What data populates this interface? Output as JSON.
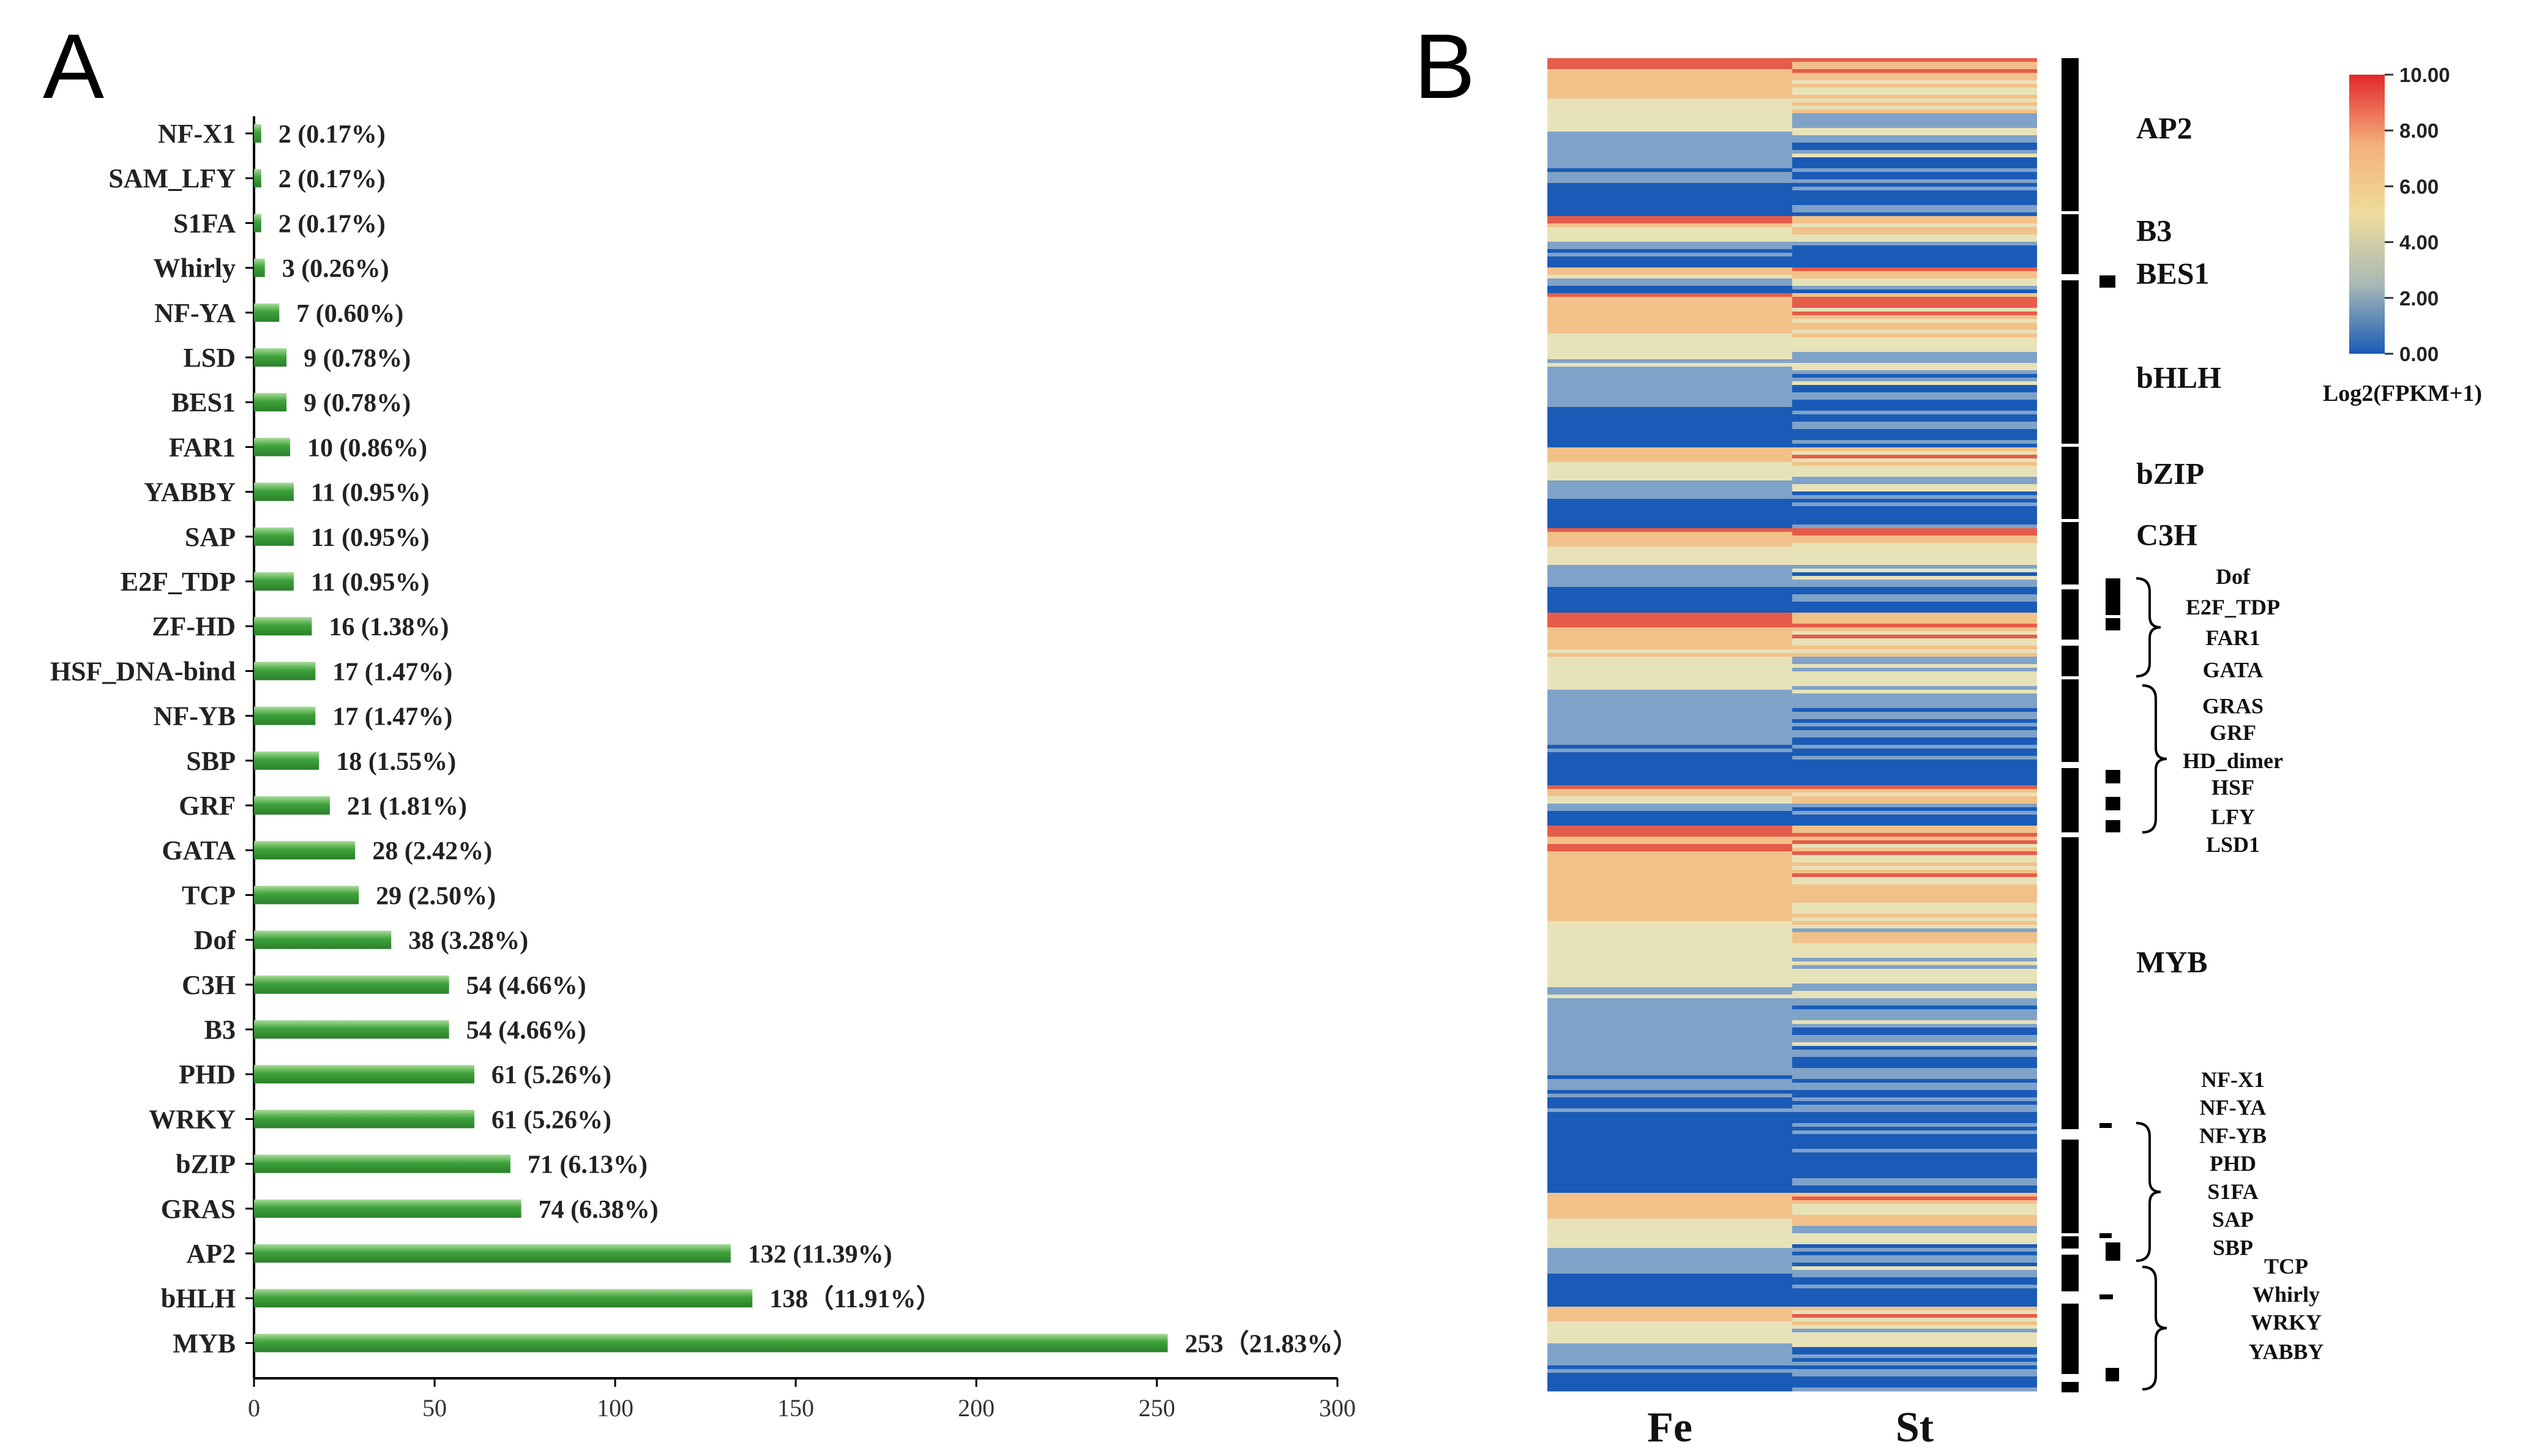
{
  "panel_a": {
    "label": "A"
  },
  "panel_b": {
    "label": "B",
    "colorbar": {
      "title": "Log2(FPKM+1)",
      "ticks": [
        "10.00",
        "8.00",
        "6.00",
        "4.00",
        "2.00",
        "0.00"
      ],
      "colors": [
        "#e3262a",
        "#f3b07c",
        "#eedd9c",
        "#a9b9b6",
        "#1a5bb7"
      ]
    },
    "heatmap_colors": {
      "low": "#1a5bb7",
      "mid_low": "#7fa2c8",
      "mid": "#e8e2b8",
      "mid_high": "#f2c189",
      "high": "#e55c4a"
    }
  },
  "chart_data": [
    {
      "type": "bar",
      "orientation": "horizontal",
      "title": "",
      "xlabel": "",
      "ylabel": "",
      "xlim": [
        0,
        300
      ],
      "xticks": [
        0,
        50,
        100,
        150,
        200,
        250,
        300
      ],
      "categories": [
        "NF-X1",
        "SAM_LFY",
        "S1FA",
        "Whirly",
        "NF-YA",
        "LSD",
        "BES1",
        "FAR1",
        "YABBY",
        "SAP",
        "E2F_TDP",
        "ZF-HD",
        "HSF_DNA-bind",
        "NF-YB",
        "SBP",
        "GRF",
        "GATA",
        "TCP",
        "Dof",
        "C3H",
        "B3",
        "PHD",
        "WRKY",
        "bZIP",
        "GRAS",
        "AP2",
        "bHLH",
        "MYB"
      ],
      "values": [
        2,
        2,
        2,
        3,
        7,
        9,
        9,
        10,
        11,
        11,
        11,
        16,
        17,
        17,
        18,
        21,
        28,
        29,
        38,
        54,
        54,
        61,
        61,
        71,
        74,
        132,
        138,
        253
      ],
      "data_labels": [
        "2  (0.17%)",
        "2  (0.17%)",
        "2  (0.17%)",
        "3  (0.26%)",
        "7  (0.60%)",
        "9  (0.78%)",
        "9  (0.78%)",
        "10  (0.86%)",
        "11  (0.95%)",
        "11  (0.95%)",
        "11  (0.95%)",
        "16  (1.38%)",
        "17  (1.47%)",
        "17  (1.47%)",
        "18  (1.55%)",
        "21  (1.81%)",
        "28  (2.42%)",
        "29  (2.50%)",
        "38  (3.28%)",
        "54  (4.66%)",
        "54  (4.66%)",
        "61  (5.26%)",
        "61  (5.26%)",
        "71  (6.13%)",
        "74  (6.38%)",
        "132  (11.39%)",
        "138（11.91%）",
        "253（21.83%）"
      ],
      "bar_color": "#3ea23a"
    },
    {
      "type": "heatmap",
      "title": "",
      "columns": [
        "Fe",
        "St"
      ],
      "colorbar_label": "Log2(FPKM+1)",
      "color_range": [
        0,
        10
      ],
      "group_labels": [
        {
          "name": "AP2",
          "y_frac": 0.06
        },
        {
          "name": "B3",
          "y_frac": 0.137
        },
        {
          "name": "BES1",
          "y_frac": 0.169
        },
        {
          "name": "bHLH",
          "y_frac": 0.247
        },
        {
          "name": "bZIP",
          "y_frac": 0.319
        },
        {
          "name": "C3H",
          "y_frac": 0.365
        },
        {
          "name": "Dof",
          "y_frac": 0.394
        },
        {
          "name": "E2F_TDP",
          "y_frac": 0.417
        },
        {
          "name": "FAR1",
          "y_frac": 0.44
        },
        {
          "name": "GATA",
          "y_frac": 0.464
        },
        {
          "name": "GRAS",
          "y_frac": 0.491
        },
        {
          "name": "GRF",
          "y_frac": 0.511
        },
        {
          "name": "HD_dimer",
          "y_frac": 0.532
        },
        {
          "name": "HSF",
          "y_frac": 0.552
        },
        {
          "name": "LFY",
          "y_frac": 0.574
        },
        {
          "name": "LSD1",
          "y_frac": 0.595
        },
        {
          "name": "MYB",
          "y_frac": 0.685
        },
        {
          "name": "NF-X1",
          "y_frac": 0.771
        },
        {
          "name": "NF-YA",
          "y_frac": 0.792
        },
        {
          "name": "NF-YB",
          "y_frac": 0.813
        },
        {
          "name": "PHD",
          "y_frac": 0.834
        },
        {
          "name": "S1FA",
          "y_frac": 0.855
        },
        {
          "name": "SAP",
          "y_frac": 0.876
        },
        {
          "name": "SBP",
          "y_frac": 0.897
        },
        {
          "name": "TCP",
          "y_frac": 0.911
        },
        {
          "name": "Whirly",
          "y_frac": 0.932
        },
        {
          "name": "WRKY",
          "y_frac": 0.953
        },
        {
          "name": "YABBY",
          "y_frac": 0.975
        }
      ]
    }
  ]
}
